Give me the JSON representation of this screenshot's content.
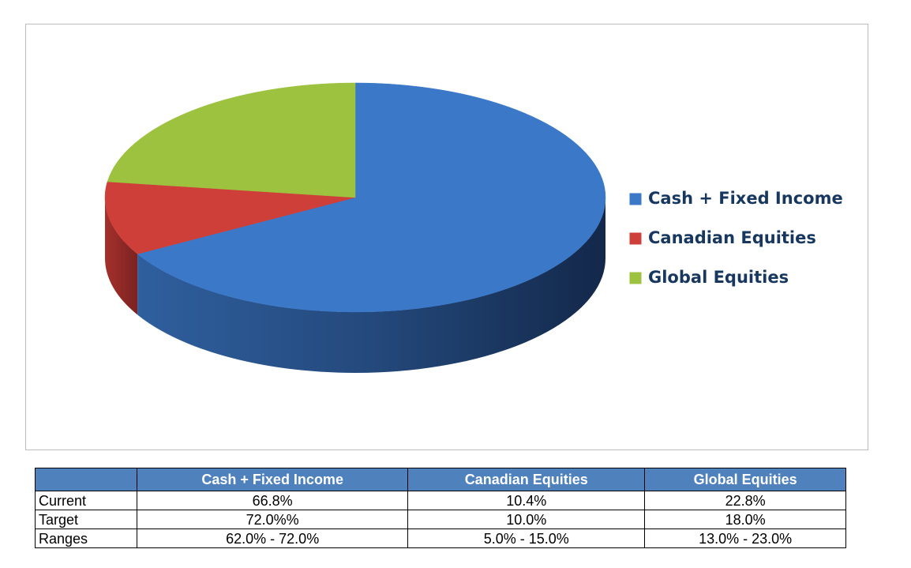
{
  "chart_data": {
    "type": "pie",
    "categories": [
      "Cash + Fixed Income",
      "Canadian Equities",
      "Global Equities"
    ],
    "values": [
      66.8,
      10.4,
      22.8
    ],
    "colors": [
      "#3b78c8",
      "#cf3f3a",
      "#9cc23f"
    ],
    "legend": "right"
  },
  "table": {
    "columns": [
      "Cash + Fixed Income",
      "Canadian Equities",
      "Global Equities"
    ],
    "rows": [
      [
        "Current",
        "66.8%",
        "10.4%",
        "22.8%"
      ],
      [
        "Target",
        "72.0%%",
        "10.0%",
        "18.0%"
      ],
      [
        "Ranges",
        "62.0% - 72.0%",
        "5.0% - 15.0%",
        "13.0% - 23.0%"
      ]
    ]
  }
}
